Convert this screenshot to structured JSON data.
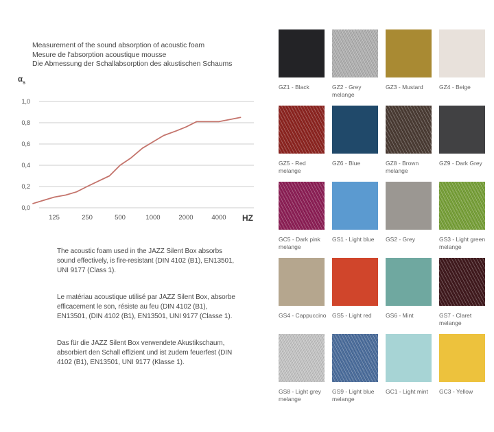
{
  "header": {
    "titles": [
      "Measurement of the sound absorption of acoustic foam",
      "Mesure de l'absorption acoustique mousse",
      "Die Abmessung der Schallabsorption des akustischen Schaums"
    ]
  },
  "chart_data": {
    "type": "line",
    "title": "Measurement of the sound absorption of acoustic foam",
    "ylabel_symbol": "α",
    "ylabel_sub": "s",
    "xlabel": "HZ",
    "x_scale": "log2",
    "ylim": [
      0,
      1
    ],
    "grid": true,
    "line_color": "#c4746c",
    "grid_color": "#cccccc",
    "tick_color": "#4f4f4f",
    "y_ticks": [
      {
        "label": "1,0",
        "value": 1.0
      },
      {
        "label": "0,8",
        "value": 0.8
      },
      {
        "label": "0,6",
        "value": 0.6
      },
      {
        "label": "0,4",
        "value": 0.4
      },
      {
        "label": "0,2",
        "value": 0.2
      },
      {
        "label": "0,0",
        "value": 0.0
      }
    ],
    "x_ticks": [
      {
        "label": "125",
        "value": 125
      },
      {
        "label": "250",
        "value": 250
      },
      {
        "label": "500",
        "value": 500
      },
      {
        "label": "1000",
        "value": 1000
      },
      {
        "label": "2000",
        "value": 2000
      },
      {
        "label": "4000",
        "value": 4000
      }
    ],
    "series": [
      {
        "name": "sound-absorption-coefficient",
        "x": [
          80,
          100,
          125,
          160,
          200,
          250,
          315,
          400,
          500,
          630,
          800,
          1000,
          1250,
          1600,
          2000,
          2500,
          3150,
          4000,
          5000,
          6300
        ],
        "values": [
          0.04,
          0.07,
          0.1,
          0.12,
          0.15,
          0.2,
          0.25,
          0.3,
          0.4,
          0.47,
          0.56,
          0.62,
          0.68,
          0.72,
          0.76,
          0.81,
          0.81,
          0.81,
          0.83,
          0.85
        ]
      }
    ]
  },
  "paragraphs": [
    "The acoustic foam used in the JAZZ Silent Box absorbs sound effectively, is fire-resistant (DIN 4102 (B1), EN13501, UNI 9177 (Class 1).",
    "Le matériau acoustique utilisé par JAZZ Silent Box, absorbe efficacement le son, résiste au feu (DIN 4102 (B1), EN13501, (DIN 4102 (B1), EN13501, UNI 9177 (Classe 1).",
    "Das für die JAZZ Silent Box verwendete Akustikschaum, absorbiert den Schall effizient und ist zudem feuerfest (DIN 4102 (B1), EN13501, UNI 9177 (Klasse 1)."
  ],
  "swatches": {
    "separator": " - ",
    "items": [
      {
        "code": "GZ1",
        "name": "Black",
        "color": "#232326",
        "melange": false
      },
      {
        "code": "GZ2",
        "name": "Grey melange",
        "color": "#b2b2b2",
        "melange": true
      },
      {
        "code": "GZ3",
        "name": "Mustard",
        "color": "#a98a33",
        "melange": false
      },
      {
        "code": "GZ4",
        "name": "Beige",
        "color": "#e8e1db",
        "melange": false
      },
      {
        "code": "GZ5",
        "name": "Red melange",
        "color": "#8e2521",
        "melange": true
      },
      {
        "code": "GZ6",
        "name": "Blue",
        "color": "#20496a",
        "melange": false
      },
      {
        "code": "GZ8",
        "name": "Brown melange",
        "color": "#4b3c34",
        "melange": true
      },
      {
        "code": "GZ9",
        "name": "Dark Grey",
        "color": "#414143",
        "melange": false
      },
      {
        "code": "GC5",
        "name": "Dark pink melange",
        "color": "#8e2057",
        "melange": true
      },
      {
        "code": "GS1",
        "name": "Light blue",
        "color": "#5b9ad0",
        "melange": false
      },
      {
        "code": "GS2",
        "name": "Grey",
        "color": "#9b9792",
        "melange": false
      },
      {
        "code": "GS3",
        "name": "Light green melange",
        "color": "#79a23a",
        "melange": true
      },
      {
        "code": "GS4",
        "name": "Cappuccino",
        "color": "#b5a68e",
        "melange": false
      },
      {
        "code": "GS5",
        "name": "Light red",
        "color": "#d0452b",
        "melange": false
      },
      {
        "code": "GS6",
        "name": "Mint",
        "color": "#6fa8a0",
        "melange": false
      },
      {
        "code": "GS7",
        "name": "Claret melange",
        "color": "#411a1e",
        "melange": true
      },
      {
        "code": "GS8",
        "name": "Light grey melange",
        "color": "#c6c6c6",
        "melange": true
      },
      {
        "code": "GS9",
        "name": "Light blue melange",
        "color": "#4d6f9e",
        "melange": true
      },
      {
        "code": "GC1",
        "name": "Light mint",
        "color": "#a7d4d5",
        "melange": false
      },
      {
        "code": "GC3",
        "name": "Yellow",
        "color": "#edc23d",
        "melange": false
      }
    ]
  }
}
